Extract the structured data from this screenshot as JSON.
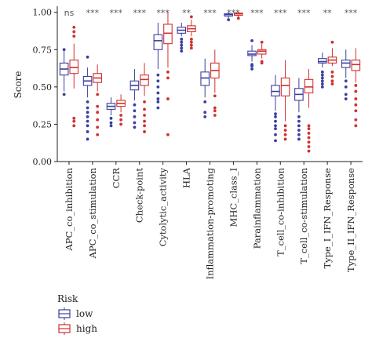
{
  "chart_data": {
    "type": "boxplot",
    "ylabel": "Score",
    "ylim": [
      0,
      1.03
    ],
    "yticks": [
      "0.00",
      "0.25",
      "0.50",
      "0.75",
      "1.00"
    ],
    "grid": false,
    "legend": {
      "title": "Risk",
      "placement": "bottom-left",
      "items": [
        {
          "name": "low",
          "color": "#3b3f9e"
        },
        {
          "name": "high",
          "color": "#d42f2f"
        }
      ]
    },
    "categories": [
      "APC_co_inhibition",
      "APC_co_stimulation",
      "CCR",
      "Check-point",
      "Cytolytic_activity",
      "HLA",
      "Inflammation-promoting",
      "MHC_class_I",
      "Parainflammation",
      "T_cell_co-inhibition",
      "T_cell_co-stimulation",
      "Type_I_IFN_Response",
      "Type_II_IFN_Response"
    ],
    "significance": [
      "ns",
      "***",
      "***",
      "***",
      "***",
      "**",
      "***",
      "***",
      "***",
      "***",
      "***",
      "**",
      "***"
    ],
    "series": [
      {
        "name": "low",
        "color": "#3b3f9e",
        "boxes": [
          {
            "min": 0.47,
            "q1": 0.58,
            "median": 0.62,
            "q3": 0.66,
            "max": 0.76,
            "outliers": [
              0.45,
              0.75
            ]
          },
          {
            "min": 0.43,
            "q1": 0.51,
            "median": 0.54,
            "q3": 0.57,
            "max": 0.63,
            "outliers": [
              0.4,
              0.36,
              0.33,
              0.3,
              0.27,
              0.24,
              0.2,
              0.15,
              0.7
            ]
          },
          {
            "min": 0.31,
            "q1": 0.35,
            "median": 0.37,
            "q3": 0.39,
            "max": 0.43,
            "outliers": [
              0.29,
              0.26,
              0.24
            ]
          },
          {
            "min": 0.41,
            "q1": 0.48,
            "median": 0.51,
            "q3": 0.54,
            "max": 0.62,
            "outliers": [
              0.38,
              0.34,
              0.3,
              0.26,
              0.23
            ]
          },
          {
            "min": 0.62,
            "q1": 0.75,
            "median": 0.81,
            "q3": 0.85,
            "max": 0.93,
            "outliers": [
              0.58,
              0.54,
              0.5,
              0.46,
              0.42,
              0.4,
              0.36
            ]
          },
          {
            "min": 0.84,
            "q1": 0.86,
            "median": 0.88,
            "q3": 0.9,
            "max": 0.93,
            "outliers": [
              0.82,
              0.8,
              0.78,
              0.76,
              0.74
            ]
          },
          {
            "min": 0.43,
            "q1": 0.51,
            "median": 0.56,
            "q3": 0.6,
            "max": 0.69,
            "outliers": [
              0.4,
              0.33,
              0.3
            ]
          },
          {
            "min": 0.955,
            "q1": 0.975,
            "median": 0.985,
            "q3": 0.99,
            "max": 1.0,
            "outliers": [
              0.95
            ]
          },
          {
            "min": 0.67,
            "q1": 0.71,
            "median": 0.72,
            "q3": 0.74,
            "max": 0.78,
            "outliers": [
              0.81,
              0.65,
              0.64,
              0.62
            ]
          },
          {
            "min": 0.34,
            "q1": 0.44,
            "median": 0.47,
            "q3": 0.51,
            "max": 0.58,
            "outliers": [
              0.32,
              0.3,
              0.27,
              0.24,
              0.22,
              0.18,
              0.14
            ]
          },
          {
            "min": 0.33,
            "q1": 0.41,
            "median": 0.45,
            "q3": 0.49,
            "max": 0.56,
            "outliers": [
              0.3,
              0.27,
              0.24,
              0.21,
              0.18,
              0.15
            ]
          },
          {
            "min": 0.63,
            "q1": 0.66,
            "median": 0.67,
            "q3": 0.69,
            "max": 0.73,
            "outliers": [
              0.6,
              0.58,
              0.56,
              0.54,
              0.52,
              0.5
            ]
          },
          {
            "min": 0.56,
            "q1": 0.63,
            "median": 0.66,
            "q3": 0.68,
            "max": 0.75,
            "outliers": [
              0.54,
              0.5,
              0.45,
              0.42
            ]
          }
        ]
      },
      {
        "name": "high",
        "color": "#d42f2f",
        "boxes": [
          {
            "min": 0.49,
            "q1": 0.59,
            "median": 0.63,
            "q3": 0.68,
            "max": 0.79,
            "outliers": [
              0.9,
              0.87,
              0.84,
              0.29,
              0.27,
              0.24
            ]
          },
          {
            "min": 0.47,
            "q1": 0.53,
            "median": 0.56,
            "q3": 0.59,
            "max": 0.65,
            "outliers": [
              0.45,
              0.37,
              0.33,
              0.28,
              0.23,
              0.18
            ]
          },
          {
            "min": 0.33,
            "q1": 0.37,
            "median": 0.39,
            "q3": 0.41,
            "max": 0.45,
            "outliers": [
              0.31,
              0.28,
              0.25
            ]
          },
          {
            "min": 0.44,
            "q1": 0.51,
            "median": 0.55,
            "q3": 0.58,
            "max": 0.66,
            "outliers": [
              0.4,
              0.35,
              0.31,
              0.27,
              0.24,
              0.2
            ]
          },
          {
            "min": 0.63,
            "q1": 0.79,
            "median": 0.86,
            "q3": 0.92,
            "max": 1.0,
            "outliers": [
              0.6,
              0.56,
              0.42,
              0.18
            ]
          },
          {
            "min": 0.84,
            "q1": 0.87,
            "median": 0.89,
            "q3": 0.91,
            "max": 0.95,
            "outliers": [
              0.97,
              0.82,
              0.8,
              0.78,
              0.76
            ]
          },
          {
            "min": 0.46,
            "q1": 0.56,
            "median": 0.61,
            "q3": 0.66,
            "max": 0.75,
            "outliers": [
              0.44,
              0.36,
              0.34,
              0.31
            ]
          },
          {
            "min": 0.965,
            "q1": 0.98,
            "median": 0.99,
            "q3": 0.995,
            "max": 1.0,
            "outliers": [
              0.96
            ]
          },
          {
            "min": 0.69,
            "q1": 0.72,
            "median": 0.74,
            "q3": 0.75,
            "max": 0.79,
            "outliers": [
              0.8,
              0.67,
              0.66
            ]
          },
          {
            "min": 0.27,
            "q1": 0.44,
            "median": 0.51,
            "q3": 0.56,
            "max": 0.68,
            "outliers": [
              0.24,
              0.21,
              0.18,
              0.15
            ]
          },
          {
            "min": 0.36,
            "q1": 0.46,
            "median": 0.5,
            "q3": 0.55,
            "max": 0.62,
            "outliers": [
              0.24,
              0.22,
              0.19,
              0.16,
              0.13,
              0.1,
              0.07
            ]
          },
          {
            "min": 0.64,
            "q1": 0.66,
            "median": 0.68,
            "q3": 0.7,
            "max": 0.76,
            "outliers": [
              0.8,
              0.6,
              0.57,
              0.54,
              0.52
            ]
          },
          {
            "min": 0.53,
            "q1": 0.61,
            "median": 0.65,
            "q3": 0.68,
            "max": 0.76,
            "outliers": [
              0.51,
              0.47,
              0.42,
              0.38,
              0.34,
              0.28,
              0.24
            ]
          }
        ]
      }
    ]
  }
}
